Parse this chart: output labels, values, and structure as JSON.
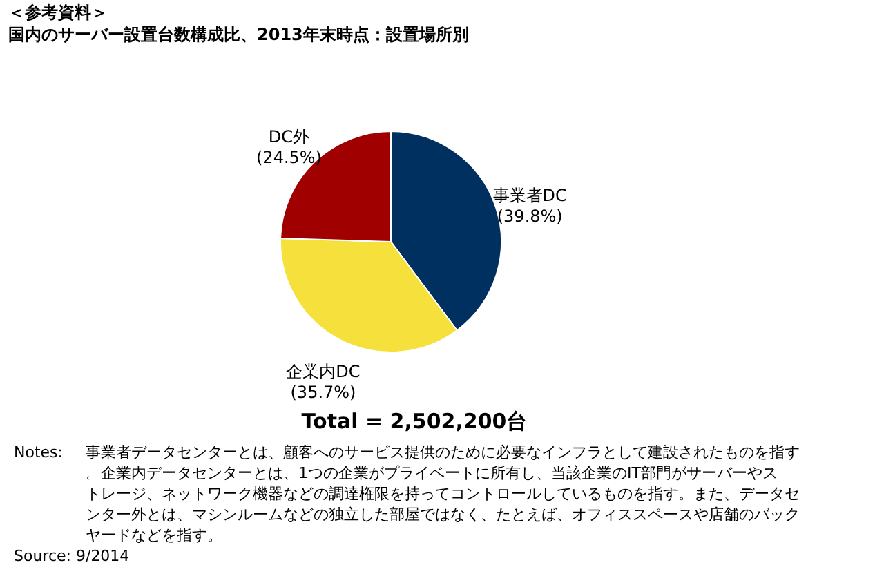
{
  "chart_data": {
    "type": "pie",
    "title": "＜参考資料＞",
    "subtitle": "国内のサーバー設置台数構成比、2013年末時点：設置場所別",
    "categories": [
      "事業者DC",
      "企業内DC",
      "DC外"
    ],
    "values": [
      39.8,
      35.7,
      24.5
    ],
    "value_labels": [
      "(39.8%)",
      "(35.7%)",
      "(24.5%)"
    ],
    "colors": [
      "#00305f",
      "#f5e03c",
      "#a00000"
    ],
    "annotations": [
      "Total = 2,502,200台",
      "Notes: 事業者データセンターとは、顧客へのサービス提供のために必要なインフラとして建設されたものを指す。企業内データセンターとは、1つの企業がプライベートに所有し、当該企業のIT部門がサーバーやストレージ、ネットワーク機器などの調達権限を持ってコントロールしているものを指す。また、データセンター外とは、マシンルームなどの独立した部屋ではなく、たとえば、オフィススペースや店舗のバックヤードなどを指す。",
      "Source: 9/2014"
    ]
  }
}
